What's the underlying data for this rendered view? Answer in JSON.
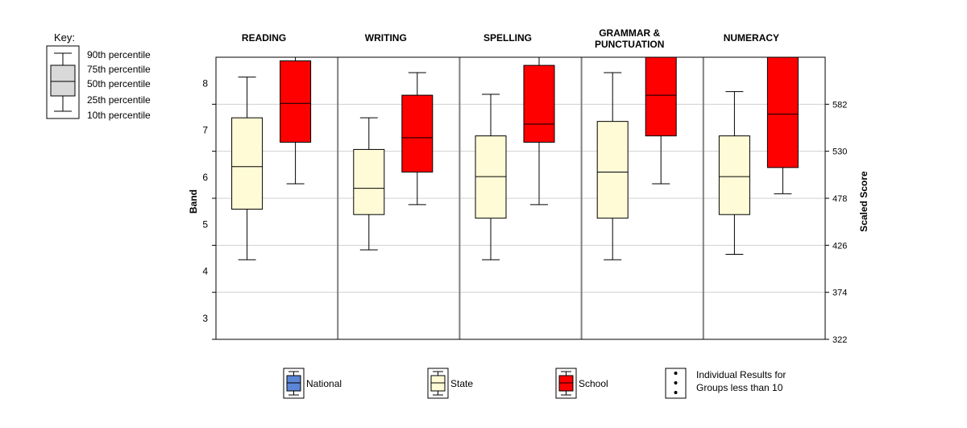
{
  "key": {
    "title": "Key:",
    "labels": [
      "90th percentile",
      "75th percentile",
      "50th percentile",
      "25th percentile",
      "10th percentile"
    ]
  },
  "legend": [
    {
      "label": "National",
      "color": "#5b86d6"
    },
    {
      "label": "State",
      "color": "#fffbd6"
    },
    {
      "label": "School",
      "color": "#ff0000"
    },
    {
      "label_lines": [
        "Individual Results for",
        "Groups less than 10"
      ],
      "color": "#ffffff"
    }
  ],
  "chart_data": {
    "type": "box",
    "categories": [
      {
        "label_lines": [
          "READING"
        ]
      },
      {
        "label_lines": [
          "WRITING"
        ]
      },
      {
        "label_lines": [
          "SPELLING"
        ]
      },
      {
        "label_lines": [
          "GRAMMAR &",
          "PUNCTUATION"
        ]
      },
      {
        "label_lines": [
          "NUMERACY"
        ]
      }
    ],
    "ylabel": "Band",
    "y2label": "Scaled Score",
    "ylim": [
      322,
      634
    ],
    "band_ticks": [
      {
        "label": "3",
        "value": 322
      },
      {
        "label": "4",
        "value": 374
      },
      {
        "label": "5",
        "value": 426
      },
      {
        "label": "6",
        "value": 478
      },
      {
        "label": "7",
        "value": 530
      },
      {
        "label": "8",
        "value": 582
      }
    ],
    "score_ticks": [
      322,
      374,
      426,
      478,
      530,
      582
    ],
    "band_label_offset": 26,
    "grid": true,
    "series": [
      {
        "name": "State",
        "color": "#fffbd6",
        "boxes": [
          {
            "p10": 410,
            "p25": 466,
            "p50": 513,
            "p75": 567,
            "p90": 612
          },
          {
            "p10": 421,
            "p25": 460,
            "p50": 489,
            "p75": 532,
            "p90": 567
          },
          {
            "p10": 410,
            "p25": 456,
            "p50": 502,
            "p75": 547,
            "p90": 593
          },
          {
            "p10": 410,
            "p25": 456,
            "p50": 507,
            "p75": 563,
            "p90": 617
          },
          {
            "p10": 416,
            "p25": 460,
            "p50": 502,
            "p75": 547,
            "p90": 596
          }
        ]
      },
      {
        "name": "School",
        "color": "#ff0000",
        "boxes": [
          {
            "p10": 494,
            "p25": 540,
            "p50": 583,
            "p75": 630,
            "p90": 634
          },
          {
            "p10": 471,
            "p25": 507,
            "p50": 545,
            "p75": 592,
            "p90": 617
          },
          {
            "p10": 471,
            "p25": 540,
            "p50": 560,
            "p75": 625,
            "p90": 634
          },
          {
            "p10": 494,
            "p25": 547,
            "p50": 592,
            "p75": 634,
            "p90": 634
          },
          {
            "p10": 483,
            "p25": 512,
            "p50": 571,
            "p75": 634,
            "p90": 634
          }
        ]
      }
    ]
  }
}
